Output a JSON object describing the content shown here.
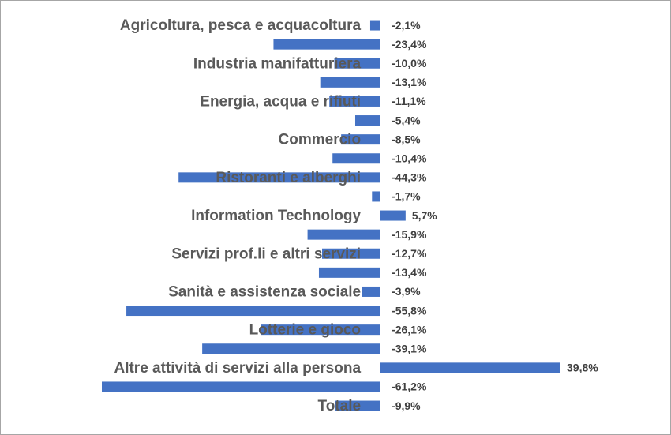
{
  "chart_data": {
    "type": "bar",
    "orientation": "horizontal",
    "categories": [
      "Agricoltura, pesca e acquacoltura",
      null,
      "Industria manifatturiera",
      null,
      "Energia, acqua e rifiuti",
      null,
      "Commercio",
      null,
      "Ristoranti e alberghi",
      null,
      "Information Technology",
      null,
      "Servizi prof.li e altri servizi",
      null,
      "Sanità e assistenza sociale",
      null,
      "Lotterie e gioco",
      null,
      "Altre attività di servizi alla persona",
      null,
      "Totale"
    ],
    "values": [
      -2.1,
      -23.4,
      -10.0,
      -13.1,
      -11.1,
      -5.4,
      -8.5,
      -10.4,
      -44.3,
      -1.7,
      5.7,
      -15.9,
      -12.7,
      -13.4,
      -3.9,
      -55.8,
      -26.1,
      -39.1,
      39.8,
      -61.2,
      -9.9
    ],
    "value_labels": [
      "-2,1%",
      "-23,4%",
      "-10,0%",
      "-13,1%",
      "-11,1%",
      "-5,4%",
      "-8,5%",
      "-10,4%",
      "-44,3%",
      "-1,7%",
      "5,7%",
      "-15,9%",
      "-12,7%",
      "-13,4%",
      "-3,9%",
      "-55,8%",
      "-26,1%",
      "-39,1%",
      "39,8%",
      "-61,2%",
      "-9,9%"
    ],
    "color": "#4472c4"
  }
}
